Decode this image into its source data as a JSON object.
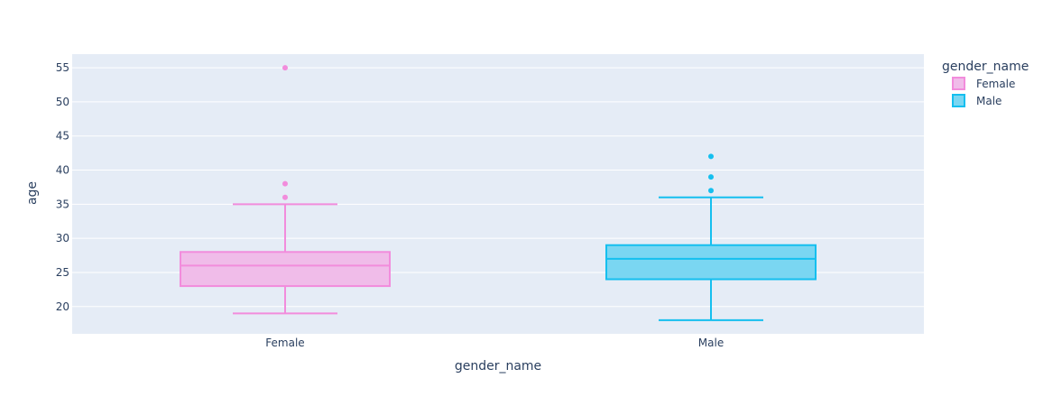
{
  "chart_data": {
    "type": "box",
    "xlabel": "gender_name",
    "ylabel": "age",
    "categories": [
      "Female",
      "Male"
    ],
    "ylim": [
      16,
      57
    ],
    "yticks": [
      20,
      25,
      30,
      35,
      40,
      45,
      50,
      55
    ],
    "grid": true,
    "legend": {
      "title": "gender_name",
      "position": "top-right"
    },
    "series": [
      {
        "name": "Female",
        "color": "#f28cdc",
        "fill": "#f0bce9",
        "min": 19,
        "q1": 23,
        "median": 26,
        "q3": 28,
        "max": 35,
        "outliers": [
          36,
          38,
          55
        ]
      },
      {
        "name": "Male",
        "color": "#15bfef",
        "fill": "#7ad6f2",
        "min": 18,
        "q1": 24,
        "median": 27,
        "q3": 29,
        "max": 36,
        "outliers": [
          37,
          39,
          42
        ]
      }
    ]
  }
}
